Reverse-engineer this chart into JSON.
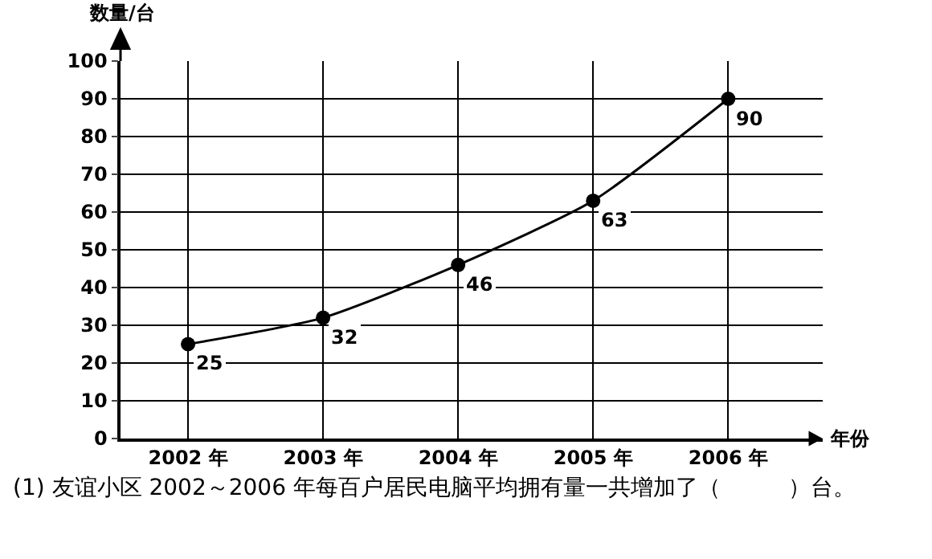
{
  "chart_data": {
    "type": "line",
    "xlabel": "年份",
    "ylabel": "数量/台",
    "categories": [
      "2002 年",
      "2003 年",
      "2004 年",
      "2005 年",
      "2006 年"
    ],
    "series": [
      {
        "color": "#000000",
        "values": [
          25,
          32,
          46,
          63,
          90
        ]
      }
    ],
    "ylim": [
      0,
      100
    ],
    "yticks": [
      0,
      10,
      20,
      30,
      40,
      50,
      60,
      70,
      80,
      90,
      100
    ],
    "grid": true,
    "marker": "circle",
    "line_style": "solid",
    "data_labels": true,
    "annotations": [
      "(1) 友谊小区 2002～2006 年每百户居民电脑平均拥有量一共增加了（　　　）台。"
    ]
  }
}
